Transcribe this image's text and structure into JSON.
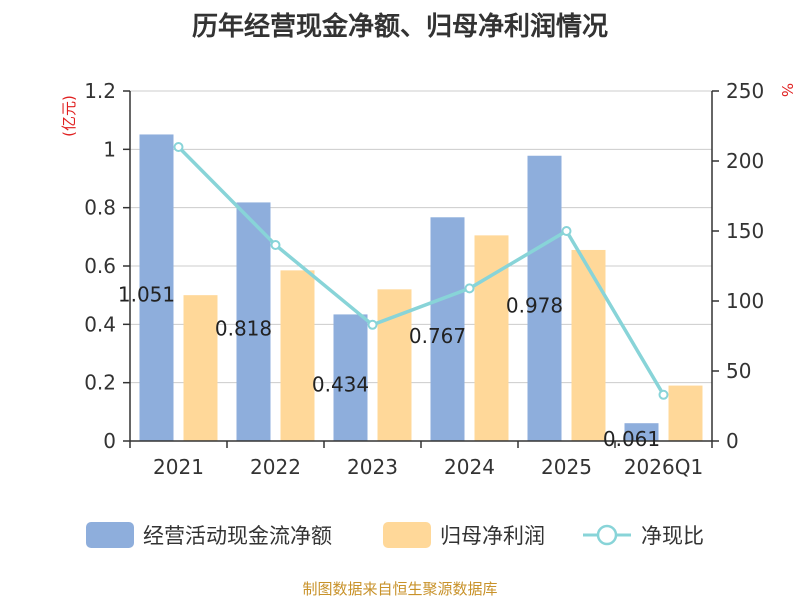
{
  "title": "历年经营现金净额、归母净利润情况",
  "source": "制图数据来自恒生聚源数据库",
  "chart_data": {
    "type": "bar",
    "title": "历年经营现金净额、归母净利润情况",
    "categories": [
      "2021",
      "2022",
      "2023",
      "2024",
      "2025",
      "2026Q1"
    ],
    "series": [
      {
        "name": "经营活动现金流净额",
        "type": "bar",
        "axis": "left",
        "color": "#8eaedc",
        "values": [
          1.051,
          0.818,
          0.434,
          0.767,
          0.978,
          0.061
        ],
        "labels": [
          "1.051",
          "0.818",
          "0.434",
          "0.767",
          "0.978",
          "0.061"
        ]
      },
      {
        "name": "归母净利润",
        "type": "bar",
        "axis": "left",
        "color": "#ffd899",
        "values": [
          0.5,
          0.585,
          0.52,
          0.705,
          0.655,
          0.19
        ]
      },
      {
        "name": "净现比",
        "type": "line",
        "axis": "right",
        "color": "#88d4d8",
        "values": [
          210,
          140,
          83,
          109,
          150,
          33
        ]
      }
    ],
    "y_left": {
      "label": "(亿元)",
      "min": 0,
      "max": 1.2,
      "ticks": [
        "0",
        "0.2",
        "0.4",
        "0.6",
        "0.8",
        "1",
        "1.2"
      ]
    },
    "y_right": {
      "label": "%",
      "min": 0,
      "max": 250,
      "ticks": [
        "0",
        "50",
        "100",
        "150",
        "200",
        "250"
      ]
    },
    "grid": true,
    "legend_position": "bottom"
  }
}
